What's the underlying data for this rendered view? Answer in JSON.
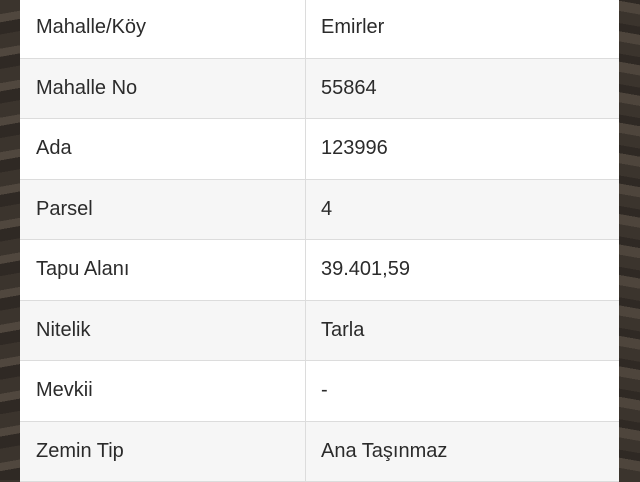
{
  "rows": [
    {
      "label": "Mahalle/Köy",
      "value": "Emirler"
    },
    {
      "label": "Mahalle No",
      "value": "55864"
    },
    {
      "label": "Ada",
      "value": "123996"
    },
    {
      "label": "Parsel",
      "value": "4"
    },
    {
      "label": "Tapu Alanı",
      "value": "39.401,59"
    },
    {
      "label": "Nitelik",
      "value": "Tarla"
    },
    {
      "label": "Mevkii",
      "value": "-"
    },
    {
      "label": "Zemin Tip",
      "value": "Ana Taşınmaz"
    }
  ]
}
